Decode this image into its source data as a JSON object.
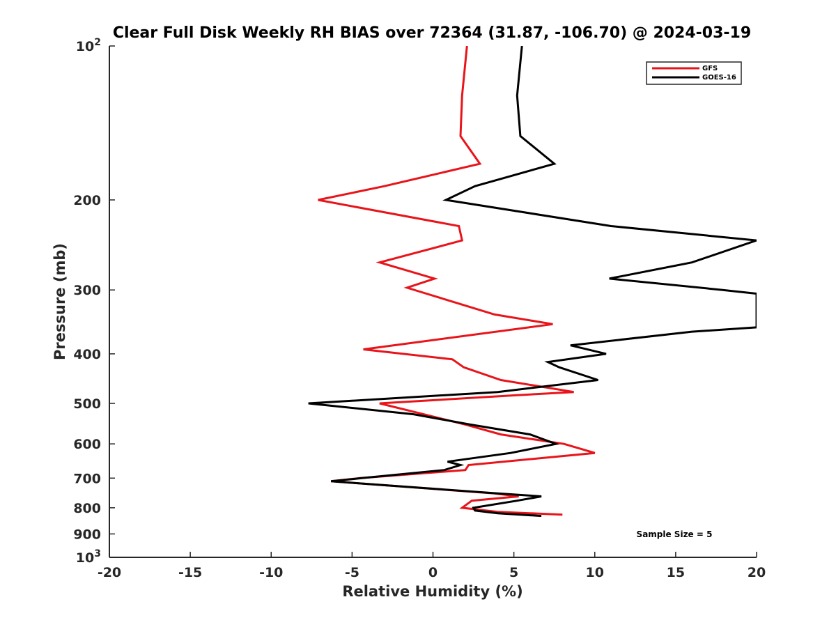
{
  "chart_data": {
    "type": "line",
    "title": "Clear Full Disk Weekly RH BIAS over 72364 (31.87, -106.70) @ 2024-03-19",
    "xlabel": "Relative Humidity (%)",
    "ylabel": "Pressure (mb)",
    "xlim": [
      -20,
      20
    ],
    "ylim": [
      100,
      1000
    ],
    "y_scale": "log",
    "y_reversed": true,
    "x_ticks": [
      {
        "value": -20,
        "label": "-20"
      },
      {
        "value": -15,
        "label": "-15"
      },
      {
        "value": -10,
        "label": "-10"
      },
      {
        "value": -5,
        "label": "-5"
      },
      {
        "value": 0,
        "label": "0"
      },
      {
        "value": 5,
        "label": "5"
      },
      {
        "value": 10,
        "label": "10"
      },
      {
        "value": 15,
        "label": "15"
      },
      {
        "value": 20,
        "label": "20"
      }
    ],
    "y_ticks": [
      {
        "value": 100,
        "label": "10",
        "sup": "2"
      },
      {
        "value": 200,
        "label": "200"
      },
      {
        "value": 300,
        "label": "300"
      },
      {
        "value": 400,
        "label": "400"
      },
      {
        "value": 500,
        "label": "500"
      },
      {
        "value": 600,
        "label": "600"
      },
      {
        "value": 700,
        "label": "700"
      },
      {
        "value": 800,
        "label": "800"
      },
      {
        "value": 900,
        "label": "900"
      },
      {
        "value": 1000,
        "label": "10",
        "sup": "3"
      }
    ],
    "grid": false,
    "legend_position": "top-right",
    "series": [
      {
        "name": "GFS",
        "color": "#e8141a",
        "points": [
          [
            2.1,
            100
          ],
          [
            1.8,
            125
          ],
          [
            1.7,
            150
          ],
          [
            2.9,
            170
          ],
          [
            -3.0,
            188
          ],
          [
            -7.1,
            200
          ],
          [
            1.6,
            225
          ],
          [
            1.8,
            240
          ],
          [
            -3.3,
            265
          ],
          [
            0.1,
            285
          ],
          [
            -1.6,
            297
          ],
          [
            3.8,
            335
          ],
          [
            7.4,
            350
          ],
          [
            -4.3,
            392
          ],
          [
            1.2,
            410
          ],
          [
            1.9,
            425
          ],
          [
            4.2,
            450
          ],
          [
            8.7,
            475
          ],
          [
            5.1,
            482
          ],
          [
            -3.3,
            500
          ],
          [
            2.0,
            550
          ],
          [
            4.2,
            575
          ],
          [
            8.1,
            600
          ],
          [
            10.0,
            625
          ],
          [
            2.2,
            660
          ],
          [
            2.0,
            675
          ],
          [
            -4.5,
            700
          ],
          [
            -6.3,
            710
          ],
          [
            3.8,
            750
          ],
          [
            5.3,
            760
          ],
          [
            2.4,
            775
          ],
          [
            1.8,
            800
          ],
          [
            4.0,
            815
          ],
          [
            8.0,
            825
          ]
        ]
      },
      {
        "name": "GOES-16",
        "color": "#000000",
        "points": [
          [
            5.5,
            100
          ],
          [
            5.2,
            125
          ],
          [
            5.4,
            150
          ],
          [
            7.5,
            170
          ],
          [
            2.6,
            188
          ],
          [
            0.8,
            200
          ],
          [
            11.0,
            225
          ],
          [
            20.0,
            240
          ],
          [
            16.0,
            265
          ],
          [
            10.9,
            285
          ],
          [
            17.9,
            300
          ],
          [
            20.0,
            305
          ],
          [
            20.0,
            355
          ],
          [
            16.0,
            362
          ],
          [
            8.5,
            385
          ],
          [
            10.7,
            400
          ],
          [
            7.1,
            415
          ],
          [
            7.8,
            425
          ],
          [
            10.2,
            450
          ],
          [
            4.0,
            475
          ],
          [
            -7.7,
            500
          ],
          [
            -1.2,
            525
          ],
          [
            2.3,
            550
          ],
          [
            6.0,
            575
          ],
          [
            7.6,
            600
          ],
          [
            4.8,
            625
          ],
          [
            0.9,
            650
          ],
          [
            1.7,
            660
          ],
          [
            0.7,
            675
          ],
          [
            -4.4,
            700
          ],
          [
            -6.3,
            710
          ],
          [
            4.0,
            750
          ],
          [
            6.7,
            760
          ],
          [
            5.2,
            775
          ],
          [
            2.5,
            800
          ],
          [
            2.6,
            810
          ],
          [
            4.0,
            820
          ],
          [
            6.7,
            830
          ]
        ]
      }
    ],
    "annotations": [
      {
        "text": "Sample Size = 5",
        "position": "bottom-right"
      }
    ]
  }
}
